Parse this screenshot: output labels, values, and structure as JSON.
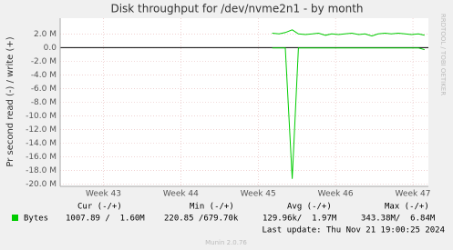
{
  "chart_data": {
    "type": "line",
    "title": "Disk throughput for /dev/nvme2n1 - by month",
    "y_label": "Pr second read (-) / write (+)",
    "side_label": "RRDTOOL / TOBI OETIKER",
    "x": [
      45.18,
      45.27,
      45.35,
      45.44,
      45.52,
      45.61,
      45.7,
      45.78,
      45.87,
      45.95,
      46.04,
      46.12,
      46.21,
      46.3,
      46.38,
      46.47,
      46.55,
      46.64,
      46.72,
      46.81,
      46.9,
      46.98,
      47.07,
      47.15
    ],
    "xlim": [
      42.44,
      47.2
    ],
    "xticks": [
      {
        "value": 43,
        "label": "Week 43"
      },
      {
        "value": 44,
        "label": "Week 44"
      },
      {
        "value": 45,
        "label": "Week 45"
      },
      {
        "value": 46,
        "label": "Week 46"
      },
      {
        "value": 47,
        "label": "Week 47"
      }
    ],
    "ylim": [
      -20.3,
      4.3
    ],
    "yticks": [
      {
        "value": 2,
        "label": "2.0 M"
      },
      {
        "value": 0,
        "label": "0.0"
      },
      {
        "value": -2,
        "label": "-2.0 M"
      },
      {
        "value": -4,
        "label": "-4.0 M"
      },
      {
        "value": -6,
        "label": "-6.0 M"
      },
      {
        "value": -8,
        "label": "-8.0 M"
      },
      {
        "value": -10,
        "label": "-10.0 M"
      },
      {
        "value": -12,
        "label": "-12.0 M"
      },
      {
        "value": -14,
        "label": "-14.0 M"
      },
      {
        "value": -16,
        "label": "-16.0 M"
      },
      {
        "value": -18,
        "label": "-18.0 M"
      },
      {
        "value": -20,
        "label": "-20.0 M"
      }
    ],
    "grid": true,
    "series": [
      {
        "name": "Bytes",
        "color": "#00cc00",
        "values": [
          2.1,
          2.0,
          2.2,
          2.6,
          2.0,
          1.9,
          2.0,
          2.1,
          1.8,
          2.0,
          1.9,
          2.0,
          2.1,
          1.9,
          2.0,
          1.7,
          2.0,
          2.1,
          2.0,
          2.1,
          2.0,
          1.9,
          2.0,
          1.8
        ]
      },
      {
        "color": "#00cc00",
        "values": [
          -0.05,
          -0.05,
          -0.05,
          -19.2,
          -0.05,
          -0.05,
          -0.05,
          -0.05,
          -0.05,
          -0.05,
          -0.05,
          -0.05,
          -0.05,
          -0.05,
          -0.05,
          -0.05,
          -0.05,
          -0.05,
          -0.05,
          -0.05,
          -0.05,
          -0.05,
          -0.05,
          -0.3
        ]
      }
    ],
    "legend_table": {
      "headers": [
        "Cur (-/+)",
        "Min (-/+)",
        "Avg (-/+)",
        "Max (-/+)"
      ],
      "row": [
        "1007.89 /  1.60M",
        "220.85 /679.70k",
        "129.96k/  1.97M",
        "343.38M/  6.84M"
      ]
    },
    "last_update": "Last update: Thu Nov 21 19:00:25 2024",
    "footer": "Munin 2.0.76"
  }
}
